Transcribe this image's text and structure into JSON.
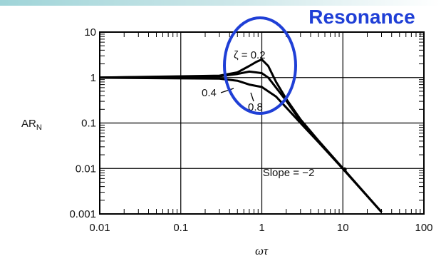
{
  "chart_data": {
    "type": "line",
    "xscale": "log",
    "yscale": "log",
    "xlim": [
      0.01,
      100
    ],
    "ylim": [
      0.001,
      10
    ],
    "xticks": [
      "0.01",
      "0.1",
      "1",
      "10",
      "100"
    ],
    "yticks": [
      "10",
      "1",
      "0.1",
      "0.01",
      "0.001"
    ],
    "xlabel": "ωτ",
    "ylabel": "AR",
    "ylabel_sub": "N",
    "grid": true,
    "series": [
      {
        "name": "0.2",
        "x": [
          0.01,
          0.3,
          0.5,
          0.7,
          0.85,
          1,
          1.2,
          1.5,
          2,
          3,
          5,
          10,
          30
        ],
        "y": [
          1,
          1.1,
          1.3,
          1.8,
          2.2,
          2.5,
          1.8,
          0.8,
          0.34,
          0.12,
          0.041,
          0.0101,
          0.0011
        ]
      },
      {
        "name": "0.4",
        "x": [
          0.01,
          0.3,
          0.5,
          0.7,
          0.85,
          1,
          1.2,
          1.5,
          2,
          3,
          5,
          10,
          30
        ],
        "y": [
          1,
          1.07,
          1.2,
          1.35,
          1.3,
          1.25,
          1.0,
          0.6,
          0.31,
          0.11,
          0.04,
          0.0099,
          0.0011
        ]
      },
      {
        "name": "0.8",
        "x": [
          0.01,
          0.3,
          0.5,
          0.7,
          1,
          1.5,
          2,
          3,
          5,
          10,
          30
        ],
        "y": [
          0.99,
          0.95,
          0.85,
          0.7,
          0.62,
          0.38,
          0.22,
          0.1,
          0.038,
          0.0098,
          0.0011
        ]
      }
    ],
    "annotations": {
      "zeta_prefix": "ζ = ",
      "slope_text": "Slope =  −2",
      "slope_point": {
        "x": 10.5,
        "y": 0.0095
      },
      "callout": "Resonance",
      "callout_color": "#1f3fd6"
    }
  }
}
